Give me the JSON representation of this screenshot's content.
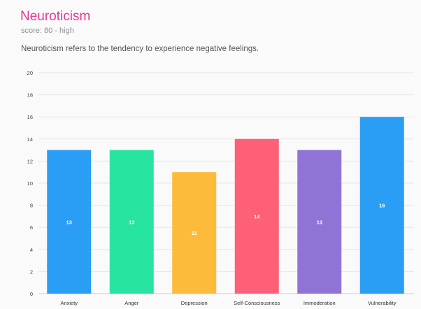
{
  "header": {
    "title": "Neuroticism",
    "score": "score: 80 - high",
    "description": "Neuroticism refers to the tendency to experience negative feelings."
  },
  "chart_data": {
    "type": "bar",
    "categories": [
      "Anxiety",
      "Anger",
      "Depression",
      "Self-Consciousness",
      "Immoderation",
      "Vulnerability"
    ],
    "values": [
      13,
      13,
      11,
      14,
      13,
      16
    ],
    "data_labels": [
      "13",
      "13",
      "11",
      "14",
      "13",
      "16"
    ],
    "colors": [
      "#2a9df4",
      "#27e4a0",
      "#fdbb3b",
      "#fe6077",
      "#8f74d6",
      "#2a9df4"
    ],
    "ylim": [
      0,
      20
    ],
    "yticks": [
      "0",
      "2",
      "4",
      "6",
      "8",
      "10",
      "12",
      "14",
      "16",
      "18",
      "20"
    ],
    "grid": true,
    "title": "",
    "xlabel": "",
    "ylabel": ""
  }
}
